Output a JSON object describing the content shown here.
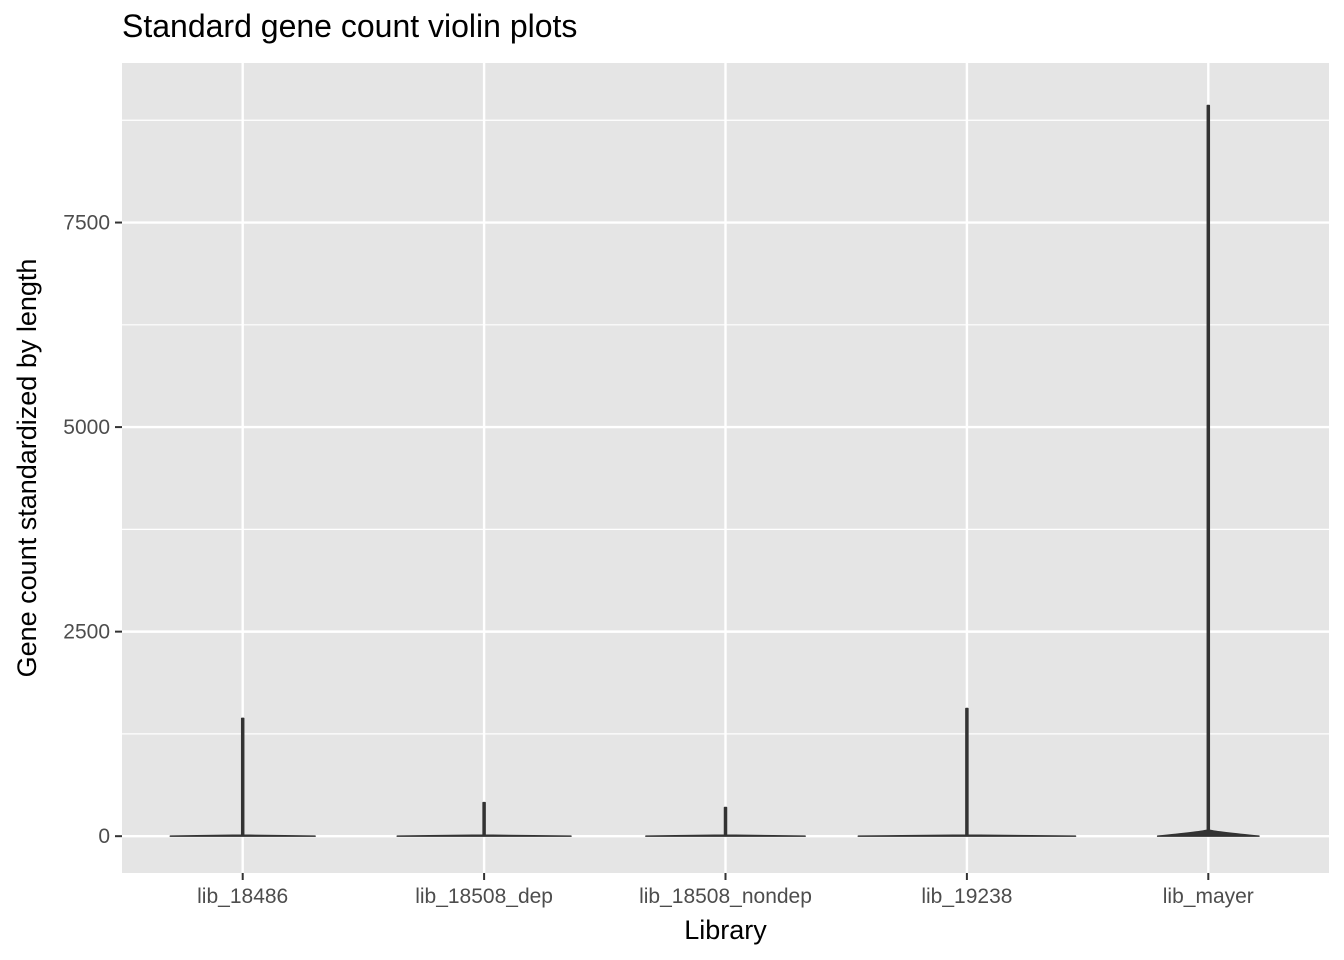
{
  "chart_data": {
    "type": "violin",
    "title": "Standard gene count violin plots",
    "xlabel": "Library",
    "ylabel": "Gene count standardized by length",
    "categories": [
      "lib_18486",
      "lib_18508_dep",
      "lib_18508_nondep",
      "lib_19238",
      "lib_mayer"
    ],
    "yticks": [
      0,
      2500,
      5000,
      7500
    ],
    "ylim": [
      -450,
      9450
    ],
    "grid": true,
    "series": [
      {
        "category": "lib_18486",
        "min": 0,
        "max": 1440,
        "base_width": 0.6
      },
      {
        "category": "lib_18508_dep",
        "min": 0,
        "max": 410,
        "base_width": 0.72
      },
      {
        "category": "lib_18508_nondep",
        "min": 0,
        "max": 350,
        "base_width": 0.66
      },
      {
        "category": "lib_19238",
        "min": 0,
        "max": 1560,
        "base_width": 0.9
      },
      {
        "category": "lib_mayer",
        "min": 0,
        "max": 8930,
        "base_width": 0.42
      }
    ],
    "colors": {
      "panel": "#e5e5e5",
      "grid": "#ffffff",
      "violin": "#333333"
    }
  }
}
